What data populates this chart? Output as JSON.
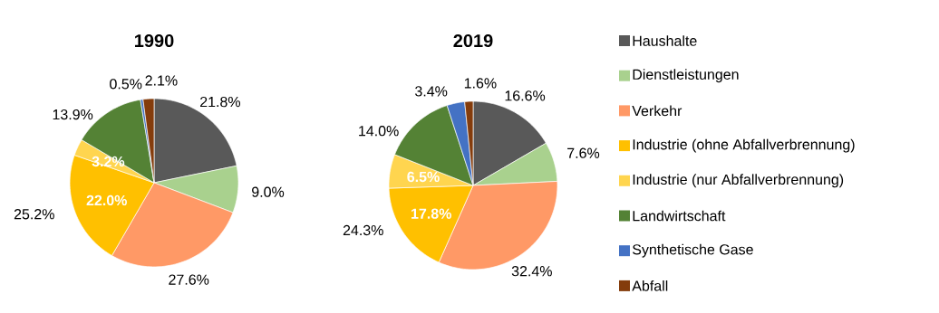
{
  "chart_data": [
    {
      "type": "pie",
      "title": "1990",
      "categories": [
        null,
        null,
        null,
        null,
        null,
        null,
        null,
        null
      ],
      "values": [
        21.8,
        9.0,
        27.6,
        22.0,
        3.2,
        13.9,
        0.5,
        2.1
      ],
      "colors": [
        "#595959",
        "#a9d18e",
        "#ff9966",
        "#ffc000",
        "#ffd54f",
        "#548235",
        "#4472c4",
        "#843c0c"
      ],
      "value_labels": [
        "21.8%",
        "9.0%",
        "27.6%",
        "22.0%",
        "3.2%",
        "13.9%",
        "0.5%",
        "2.1%"
      ],
      "annotations": [
        "25.2%"
      ]
    },
    {
      "type": "pie",
      "title": "2019",
      "categories": [
        "Haushalte",
        "Dienstleistungen",
        "Verkehr",
        "Industrie (ohne Abfallverbrennung)",
        "Industrie (nur Abfallverbrennung)",
        "Landwirtschaft",
        "Synthetische Gase",
        "Abfall"
      ],
      "values": [
        16.6,
        7.6,
        32.4,
        17.8,
        6.5,
        14.0,
        3.4,
        1.6
      ],
      "colors": [
        "#595959",
        "#a9d18e",
        "#ff9966",
        "#ffc000",
        "#ffd54f",
        "#548235",
        "#4472c4",
        "#843c0c"
      ],
      "value_labels": [
        "16.6%",
        "7.6%",
        "32.4%",
        "17.8%",
        "6.5%",
        "14.0%",
        "3.4%",
        "1.6%"
      ],
      "annotations": [
        "24.3%"
      ],
      "legend": "right"
    }
  ]
}
